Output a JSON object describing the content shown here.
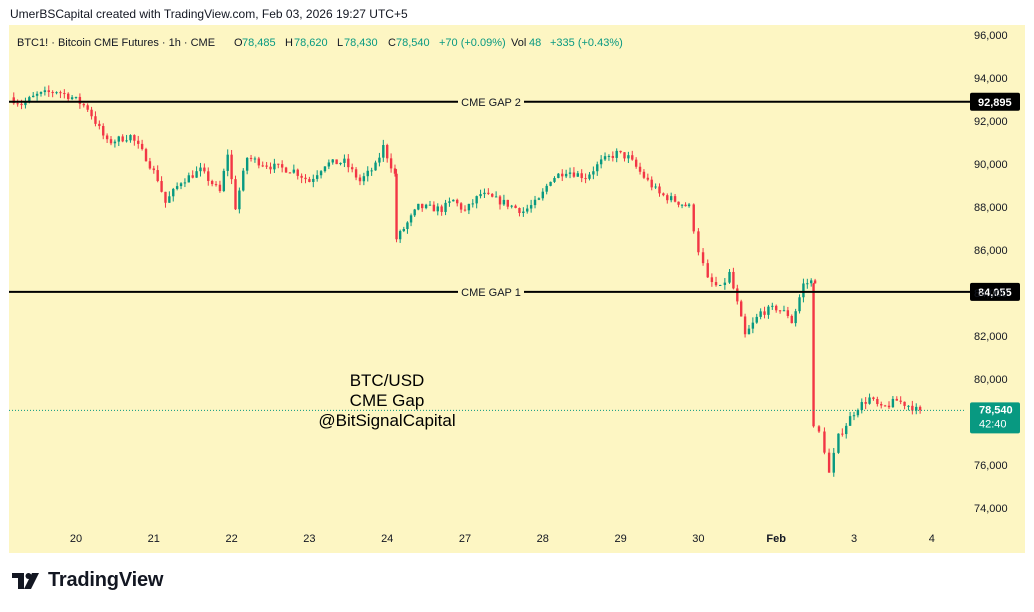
{
  "header": {
    "attribution": "UmerBSCapital created with TradingView.com, Feb 03, 2026 19:27 UTC+5"
  },
  "legend": {
    "symbol": "BTC1! · Bitcoin CME Futures · 1h · CME",
    "open_label": "O",
    "open": "78,485",
    "high_label": "H",
    "high": "78,620",
    "low_label": "L",
    "low": "78,430",
    "close_label": "C",
    "close": "78,540",
    "change": "+70 (+0.09%)",
    "vol_label": "Vol",
    "vol": "48",
    "vol_change": "+335 (+0.43%)"
  },
  "colors": {
    "background": "#fdf6c3",
    "up": "#089981",
    "down": "#f23645",
    "line": "#000000",
    "current_price": "#089981"
  },
  "annotation": {
    "line1": "BTC/USD",
    "line2": "CME Gap",
    "line3": "@BitSignalCapital"
  },
  "chart_data": {
    "type": "candlestick",
    "title": "BTC1! · Bitcoin CME Futures · 1h · CME",
    "ylim": [
      72500,
      96500
    ],
    "y_ticks": [
      74000,
      76000,
      78000,
      80000,
      82000,
      84000,
      86000,
      88000,
      90000,
      92000,
      94000,
      96000
    ],
    "y_tick_labels": [
      "74,000",
      "76,000",
      "78,000",
      "80,000",
      "82,000",
      "84,000",
      "86,000",
      "88,000",
      "90,000",
      "92,000",
      "94,000",
      "96,000"
    ],
    "x_ticks": [
      {
        "label": "20",
        "day": 0
      },
      {
        "label": "21",
        "day": 1
      },
      {
        "label": "22",
        "day": 2
      },
      {
        "label": "23",
        "day": 3
      },
      {
        "label": "24",
        "day": 4
      },
      {
        "label": "27",
        "day": 5
      },
      {
        "label": "28",
        "day": 6
      },
      {
        "label": "29",
        "day": 7
      },
      {
        "label": "30",
        "day": 8
      },
      {
        "label": "Feb",
        "day": 9
      },
      {
        "label": "3",
        "day": 10
      },
      {
        "label": "4",
        "day": 11
      }
    ],
    "horizontal_lines": [
      {
        "name": "CME GAP 2",
        "value": 92895,
        "label": "92,895"
      },
      {
        "name": "CME GAP 1",
        "value": 84055,
        "label": "84,055"
      }
    ],
    "current_price": {
      "value": 78540,
      "label": "78,540",
      "countdown": "42:40"
    },
    "price_path": [
      [
        -0.85,
        93100
      ],
      [
        -0.7,
        92800
      ],
      [
        -0.5,
        93200
      ],
      [
        -0.25,
        93400
      ],
      [
        -0.05,
        93100
      ],
      [
        0.15,
        92600
      ],
      [
        0.4,
        91000
      ],
      [
        0.7,
        91300
      ],
      [
        0.9,
        90300
      ],
      [
        1.05,
        89300
      ],
      [
        1.15,
        88200
      ],
      [
        1.35,
        89200
      ],
      [
        1.6,
        89700
      ],
      [
        1.85,
        88700
      ],
      [
        1.95,
        90500
      ],
      [
        2.05,
        88000
      ],
      [
        2.2,
        90300
      ],
      [
        2.5,
        89900
      ],
      [
        2.8,
        89700
      ],
      [
        3.0,
        89200
      ],
      [
        3.2,
        90000
      ],
      [
        3.45,
        90100
      ],
      [
        3.65,
        89200
      ],
      [
        3.85,
        89900
      ],
      [
        3.95,
        90800
      ],
      [
        4.1,
        89500
      ],
      [
        4.12,
        86500
      ],
      [
        4.4,
        88000
      ],
      [
        4.7,
        87900
      ],
      [
        4.85,
        88300
      ],
      [
        5.0,
        87800
      ],
      [
        5.2,
        88600
      ],
      [
        5.5,
        88200
      ],
      [
        5.75,
        87800
      ],
      [
        5.95,
        88300
      ],
      [
        6.1,
        89300
      ],
      [
        6.3,
        89700
      ],
      [
        6.55,
        89400
      ],
      [
        6.75,
        90100
      ],
      [
        6.95,
        90500
      ],
      [
        7.1,
        90300
      ],
      [
        7.3,
        89400
      ],
      [
        7.5,
        88600
      ],
      [
        7.7,
        88300
      ],
      [
        7.88,
        88000
      ],
      [
        8.0,
        86000
      ],
      [
        8.12,
        84600
      ],
      [
        8.28,
        84200
      ],
      [
        8.4,
        84900
      ],
      [
        8.5,
        83500
      ],
      [
        8.6,
        82000
      ],
      [
        8.8,
        83100
      ],
      [
        9.0,
        83300
      ],
      [
        9.15,
        83000
      ],
      [
        9.2,
        82600
      ],
      [
        9.35,
        84400
      ],
      [
        9.5,
        84600
      ],
      [
        9.48,
        77800
      ],
      [
        9.55,
        77500
      ],
      [
        9.62,
        76700
      ],
      [
        9.68,
        75600
      ],
      [
        9.8,
        77300
      ],
      [
        9.95,
        78200
      ],
      [
        10.05,
        78700
      ],
      [
        10.2,
        79100
      ],
      [
        10.35,
        78600
      ],
      [
        10.55,
        79000
      ],
      [
        10.75,
        78700
      ],
      [
        10.9,
        78300
      ],
      [
        11.0,
        78400
      ],
      [
        11.1,
        78540
      ]
    ]
  }
}
